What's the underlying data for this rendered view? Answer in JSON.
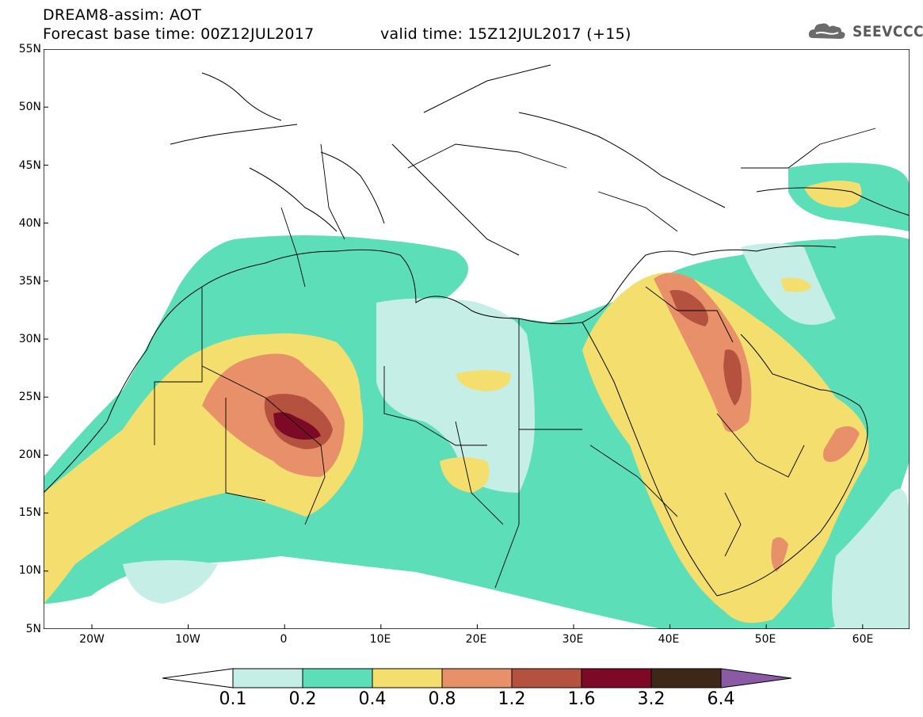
{
  "header": {
    "line1": "DREAM8-assim: AOT",
    "line2": "Forecast base time: 00Z12JUL2017",
    "line3": "valid time: 15Z12JUL2017 (+15)"
  },
  "logo": {
    "text": "SEEVCCC",
    "icon": "cloud-icon"
  },
  "map": {
    "lat_labels": [
      "55N",
      "50N",
      "45N",
      "40N",
      "35N",
      "30N",
      "25N",
      "20N",
      "15N",
      "10N",
      "5N"
    ],
    "lon_labels": [
      "20W",
      "10W",
      "0",
      "10E",
      "20E",
      "30E",
      "40E",
      "50E",
      "60E"
    ]
  },
  "legend": {
    "labels": [
      "0.1",
      "0.2",
      "0.4",
      "0.8",
      "1.2",
      "1.6",
      "3.2",
      "6.4"
    ],
    "colors": [
      "#ffffff",
      "#c5eee6",
      "#5cdfb8",
      "#f4df6e",
      "#e7906a",
      "#b5523f",
      "#7c0a26",
      "#3d2716",
      "#8a5aa6"
    ]
  }
}
